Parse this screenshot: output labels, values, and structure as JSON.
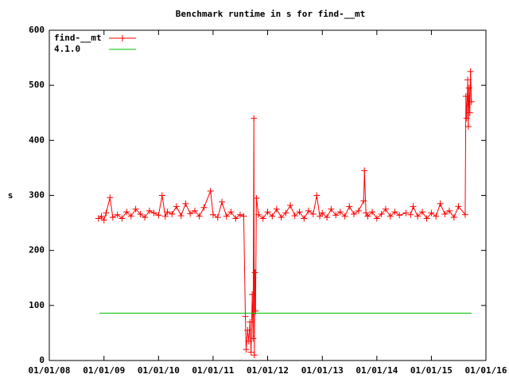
{
  "chart_data": {
    "type": "line",
    "title": "Benchmark runtime in s for find-__mt",
    "y_label": "s",
    "xlim": [
      "2008-01-01",
      "2016-01-01"
    ],
    "xticks": [
      {
        "value": "2008-01-01",
        "label": "01/01/08"
      },
      {
        "value": "2009-01-01",
        "label": "01/01/09"
      },
      {
        "value": "2010-01-01",
        "label": "01/01/10"
      },
      {
        "value": "2011-01-01",
        "label": "01/01/11"
      },
      {
        "value": "2012-01-01",
        "label": "01/01/12"
      },
      {
        "value": "2013-01-01",
        "label": "01/01/13"
      },
      {
        "value": "2014-01-01",
        "label": "01/01/14"
      },
      {
        "value": "2015-01-01",
        "label": "01/01/15"
      },
      {
        "value": "2016-01-01",
        "label": "01/01/16"
      }
    ],
    "ylim": [
      0,
      600
    ],
    "yticks": [
      0,
      100,
      200,
      300,
      400,
      500,
      600
    ],
    "grid": false,
    "legend": "top-left",
    "series": [
      {
        "name": "find-__mt",
        "color": "#ff0000",
        "marker": "plus",
        "x": [
          "2008-11-25",
          "2008-12-15",
          "2009-01-01",
          "2009-01-15",
          "2009-02-10",
          "2009-03-01",
          "2009-04-01",
          "2009-05-01",
          "2009-06-01",
          "2009-07-01",
          "2009-08-01",
          "2009-09-01",
          "2009-10-01",
          "2009-11-01",
          "2009-12-01",
          "2010-01-01",
          "2010-01-25",
          "2010-02-15",
          "2010-03-01",
          "2010-04-01",
          "2010-05-01",
          "2010-06-01",
          "2010-07-01",
          "2010-08-01",
          "2010-09-01",
          "2010-10-01",
          "2010-11-01",
          "2010-12-15",
          "2011-01-01",
          "2011-02-01",
          "2011-03-01",
          "2011-04-01",
          "2011-05-01",
          "2011-06-01",
          "2011-07-01",
          "2011-07-25",
          "2011-08-05",
          "2011-08-10",
          "2011-08-20",
          "2011-08-28",
          "2011-09-05",
          "2011-09-12",
          "2011-09-20",
          "2011-09-26",
          "2011-10-01",
          "2011-10-04",
          "2011-10-08",
          "2011-10-12",
          "2011-10-18",
          "2011-11-01",
          "2011-12-01",
          "2012-01-01",
          "2012-02-01",
          "2012-03-01",
          "2012-04-01",
          "2012-05-01",
          "2012-06-01",
          "2012-07-01",
          "2012-08-01",
          "2012-09-01",
          "2012-10-01",
          "2012-11-01",
          "2012-11-25",
          "2012-12-15",
          "2013-01-01",
          "2013-02-01",
          "2013-03-01",
          "2013-04-01",
          "2013-05-01",
          "2013-06-01",
          "2013-07-01",
          "2013-08-01",
          "2013-09-01",
          "2013-10-05",
          "2013-10-10",
          "2013-10-20",
          "2013-11-01",
          "2013-12-01",
          "2014-01-01",
          "2014-02-01",
          "2014-03-01",
          "2014-04-01",
          "2014-05-01",
          "2014-06-01",
          "2014-07-15",
          "2014-08-01",
          "2014-08-15",
          "2014-09-01",
          "2014-10-01",
          "2014-11-01",
          "2014-12-01",
          "2015-01-01",
          "2015-02-01",
          "2015-03-01",
          "2015-04-01",
          "2015-05-01",
          "2015-06-01",
          "2015-07-01",
          "2015-08-15",
          "2015-08-20",
          "2015-08-25",
          "2015-09-01",
          "2015-09-05",
          "2015-09-10",
          "2015-09-15",
          "2015-09-20",
          "2015-09-26"
        ],
        "values": [
          258,
          262,
          255,
          268,
          296,
          260,
          265,
          258,
          270,
          262,
          275,
          266,
          260,
          272,
          268,
          264,
          300,
          262,
          270,
          266,
          280,
          263,
          285,
          267,
          272,
          262,
          278,
          308,
          265,
          260,
          288,
          262,
          270,
          258,
          265,
          262,
          80,
          20,
          55,
          35,
          70,
          15,
          120,
          40,
          440,
          10,
          160,
          90,
          295,
          265,
          258,
          270,
          262,
          275,
          260,
          268,
          282,
          263,
          270,
          258,
          272,
          266,
          300,
          262,
          268,
          260,
          275,
          264,
          270,
          262,
          280,
          266,
          272,
          290,
          345,
          268,
          262,
          270,
          258,
          266,
          275,
          262,
          270,
          264,
          268,
          null,
          265,
          280,
          262,
          270,
          258,
          268,
          262,
          285,
          266,
          272,
          260,
          280,
          265,
          480,
          440,
          510,
          425,
          495,
          450,
          525,
          470
        ]
      },
      {
        "name": "4.1.0",
        "color": "#00c000",
        "x": [
          "2008-12-01",
          "2015-09-26"
        ],
        "values": [
          86,
          86
        ]
      }
    ]
  }
}
